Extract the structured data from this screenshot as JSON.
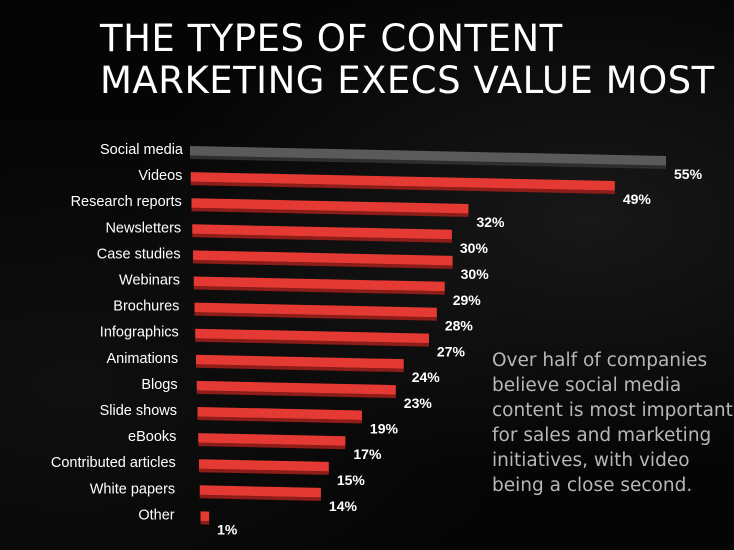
{
  "title": {
    "line1": "THE TYPES OF CONTENT",
    "line2": "MARKETING EXECS VALUE MOST"
  },
  "note": "Over half of companies believe social media content is most important for sales and marketing initiatives, with video being a close second.",
  "colors": {
    "background": "#000000",
    "highlight_bar": "#5a5a5a",
    "bar": "#e53a33",
    "text": "#ffffff",
    "note_text": "#b7b7b7"
  },
  "chart_data": {
    "type": "bar",
    "orientation": "horizontal",
    "title": "THE TYPES OF CONTENT MARKETING EXECS VALUE MOST",
    "categories": [
      "Social media",
      "Videos",
      "Research reports",
      "Newsletters",
      "Case studies",
      "Webinars",
      "Brochures",
      "Infographics",
      "Animations",
      "Blogs",
      "Slide shows",
      "eBooks",
      "Contributed articles",
      "White papers",
      "Other"
    ],
    "values": [
      55,
      49,
      32,
      30,
      30,
      29,
      28,
      27,
      24,
      23,
      19,
      17,
      15,
      14,
      1
    ],
    "value_labels": [
      "55%",
      "49%",
      "32%",
      "30%",
      "30%",
      "29%",
      "28%",
      "27%",
      "24%",
      "23%",
      "19%",
      "17%",
      "15%",
      "14%",
      "1%"
    ],
    "unit": "%",
    "highlighted_category": "Social media",
    "xlim": [
      0,
      55
    ],
    "grid": false,
    "legend": "none"
  }
}
